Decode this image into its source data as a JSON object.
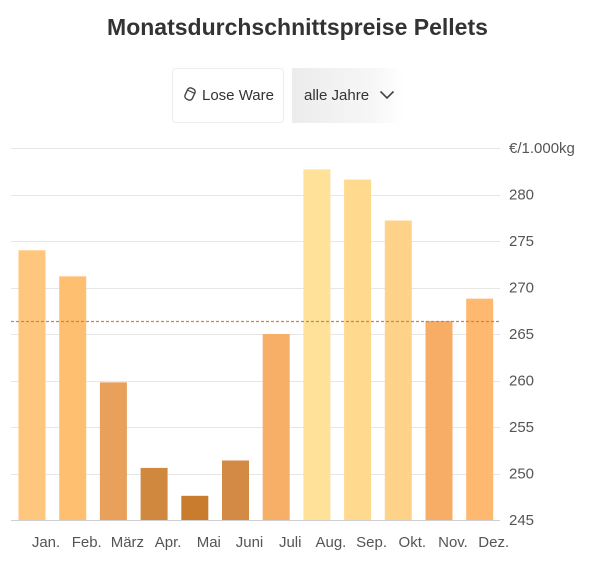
{
  "header": {
    "title": "Monatsdurchschnittspreise Pellets"
  },
  "controls": {
    "ware_label": "Lose Ware",
    "ware_icon": "pellet-bag-icon",
    "year_label": "alle Jahre",
    "year_icon": "chevron-down-icon"
  },
  "chart_data": {
    "type": "bar",
    "unit": "€/1.000kg",
    "categories": [
      "Jan.",
      "Feb.",
      "März",
      "Apr.",
      "Mai",
      "Juni",
      "Juli",
      "Aug.",
      "Sep.",
      "Okt.",
      "Nov.",
      "Dez."
    ],
    "values": [
      274,
      271.2,
      259.8,
      250.6,
      247.6,
      251.4,
      265,
      282.7,
      281.6,
      277.2,
      266.4,
      268.8
    ],
    "colors": [
      "#ffc77e",
      "#ffbf70",
      "#e9a05b",
      "#d0883f",
      "#c97c2d",
      "#d28a44",
      "#f7ae67",
      "#ffe19a",
      "#ffd98e",
      "#ffd28a",
      "#f8ad66",
      "#ffb870"
    ],
    "average": 266.4,
    "average_color": "#c78840",
    "ylim": [
      245,
      285
    ],
    "yticks": [
      245,
      250,
      255,
      260,
      265,
      270,
      275,
      280
    ],
    "grid": true
  }
}
